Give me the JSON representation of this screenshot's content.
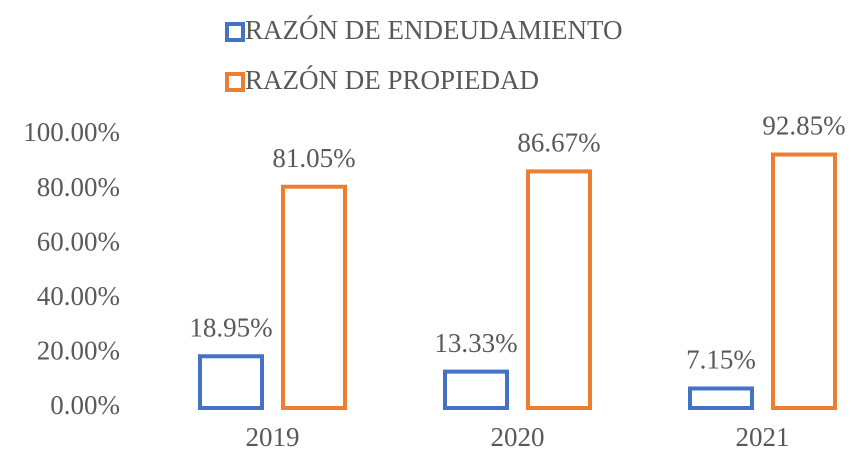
{
  "chart_data": {
    "type": "bar",
    "categories": [
      "2019",
      "2020",
      "2021"
    ],
    "series": [
      {
        "name": "RAZÓN DE ENDEUDAMIENTO",
        "color": "#4472c4",
        "values": [
          18.95,
          13.33,
          7.15
        ],
        "value_labels": [
          "18.95%",
          "13.33%",
          "7.15%"
        ]
      },
      {
        "name": "RAZÓN DE PROPIEDAD",
        "color": "#ed7d31",
        "values": [
          81.05,
          86.67,
          92.85
        ],
        "value_labels": [
          "81.05%",
          "86.67%",
          "92.85%"
        ]
      }
    ],
    "ylim": [
      0,
      100
    ],
    "yticks": [
      {
        "value": 0,
        "label": "0.00%"
      },
      {
        "value": 20,
        "label": "20.00%"
      },
      {
        "value": 40,
        "label": "40.00%"
      },
      {
        "value": 60,
        "label": "60.00%"
      },
      {
        "value": 80,
        "label": "80.00%"
      },
      {
        "value": 100,
        "label": "100.00%"
      }
    ],
    "grid": false,
    "legend": "top"
  }
}
